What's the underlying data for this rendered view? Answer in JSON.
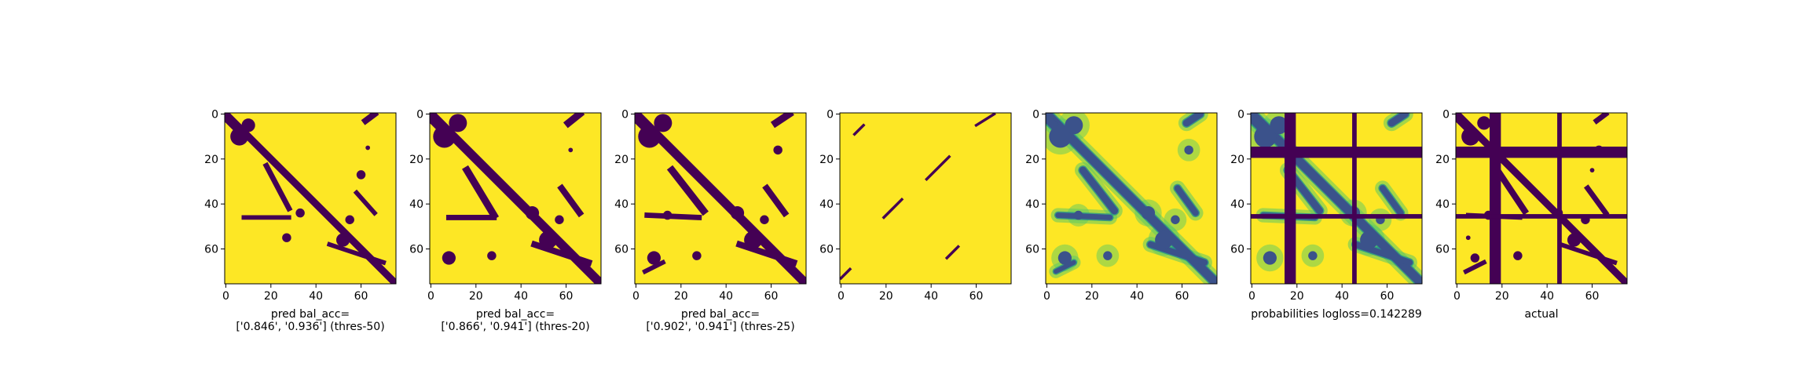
{
  "figure": {
    "colors": {
      "background": "#fde725",
      "dark": "#440154",
      "teal": "#21918c",
      "green": "#5ec962",
      "blue": "#3b528b"
    }
  },
  "chart_data": [
    {
      "type": "heatmap",
      "name": "pred-thres-50",
      "xlabel": [
        "pred bal_acc=",
        "['0.846', '0.936'] (thres-50)"
      ],
      "xticks": [
        0,
        20,
        40,
        60
      ],
      "yticks": [
        0,
        20,
        40,
        60
      ],
      "matrix_size": 76,
      "colormap": "viridis (binary)",
      "blobs": [
        [
          6,
          10,
          4
        ],
        [
          10,
          5,
          3
        ],
        [
          33,
          44,
          2
        ],
        [
          60,
          27,
          2
        ],
        [
          52,
          56,
          3
        ],
        [
          27,
          55,
          2
        ],
        [
          63,
          15,
          1
        ],
        [
          55,
          47,
          2
        ]
      ],
      "segments": [
        [
          0,
          0,
          75,
          75,
          1.6
        ],
        [
          0,
          2,
          8,
          10,
          1.4
        ],
        [
          18,
          23,
          28,
          42,
          1.2
        ],
        [
          8,
          46,
          28,
          46,
          1.0
        ],
        [
          46,
          58,
          70,
          66,
          1.0
        ],
        [
          62,
          3,
          66,
          0,
          1.4
        ],
        [
          58,
          35,
          66,
          44,
          1.0
        ]
      ]
    },
    {
      "type": "heatmap",
      "name": "pred-thres-20",
      "xlabel": [
        "pred bal_acc=",
        "['0.866', '0.941'] (thres-20)"
      ],
      "xticks": [
        0,
        20,
        40,
        60
      ],
      "yticks": [
        0,
        20,
        40,
        60
      ],
      "matrix_size": 76,
      "colormap": "viridis (binary)",
      "blobs": [
        [
          6,
          10,
          5
        ],
        [
          12,
          4,
          4
        ],
        [
          45,
          44,
          3
        ],
        [
          8,
          64,
          3
        ],
        [
          27,
          63,
          2
        ],
        [
          52,
          56,
          4
        ],
        [
          57,
          47,
          2
        ],
        [
          62,
          16,
          1
        ]
      ],
      "segments": [
        [
          0,
          0,
          75,
          75,
          2.0
        ],
        [
          0,
          2,
          8,
          10,
          1.8
        ],
        [
          16,
          25,
          28,
          45,
          1.6
        ],
        [
          8,
          46,
          28,
          46,
          1.2
        ],
        [
          46,
          58,
          70,
          66,
          1.4
        ],
        [
          61,
          4,
          66,
          0,
          1.6
        ],
        [
          58,
          33,
          66,
          44,
          1.4
        ]
      ]
    },
    {
      "type": "heatmap",
      "name": "pred-thres-25",
      "xlabel": [
        "pred bal_acc=",
        "['0.902', '0.941'] (thres-25)"
      ],
      "xticks": [
        0,
        20,
        40,
        60
      ],
      "yticks": [
        0,
        20,
        40,
        60
      ],
      "matrix_size": 76,
      "colormap": "viridis (binary)",
      "blobs": [
        [
          6,
          10,
          5
        ],
        [
          12,
          4,
          4
        ],
        [
          45,
          44,
          3
        ],
        [
          8,
          64,
          3
        ],
        [
          27,
          63,
          2
        ],
        [
          52,
          56,
          4
        ],
        [
          57,
          47,
          2
        ],
        [
          63,
          16,
          2
        ],
        [
          14,
          45,
          2
        ]
      ],
      "segments": [
        [
          0,
          0,
          75,
          75,
          2.0
        ],
        [
          0,
          2,
          8,
          10,
          1.8
        ],
        [
          16,
          25,
          30,
          43,
          1.6
        ],
        [
          5,
          45,
          28,
          46,
          1.2
        ],
        [
          46,
          58,
          70,
          66,
          1.4
        ],
        [
          62,
          4,
          68,
          0,
          1.6
        ],
        [
          58,
          33,
          66,
          44,
          1.4
        ],
        [
          4,
          70,
          12,
          66,
          1.0
        ]
      ]
    },
    {
      "type": "heatmap",
      "name": "pred-sparse",
      "xlabel": [
        "",
        ""
      ],
      "xticks": [
        0,
        20,
        40,
        60
      ],
      "yticks": [
        0,
        20,
        40,
        60
      ],
      "matrix_size": 76,
      "colormap": "viridis (binary)",
      "blobs": [],
      "segments": [
        [
          0,
          73,
          4,
          69,
          0.6
        ],
        [
          6,
          9,
          10,
          5,
          0.6
        ],
        [
          19,
          46,
          27,
          38,
          0.6
        ],
        [
          38,
          29,
          48,
          19,
          0.6
        ],
        [
          47,
          64,
          52,
          59,
          0.6
        ],
        [
          60,
          5,
          68,
          0,
          0.6
        ]
      ]
    },
    {
      "type": "heatmap",
      "name": "probabilities",
      "xlabel": [
        "",
        ""
      ],
      "xticks": [
        0,
        20,
        40,
        60
      ],
      "yticks": [
        0,
        20,
        40,
        60
      ],
      "matrix_size": 76,
      "colormap": "viridis (continuous)",
      "blobs": [
        [
          6,
          10,
          5
        ],
        [
          12,
          5,
          4
        ],
        [
          45,
          44,
          3
        ],
        [
          8,
          64,
          3
        ],
        [
          27,
          63,
          2
        ],
        [
          52,
          56,
          4
        ],
        [
          57,
          47,
          2
        ],
        [
          63,
          16,
          2
        ],
        [
          14,
          45,
          2
        ]
      ],
      "segments": [
        [
          0,
          0,
          75,
          75,
          2.0
        ],
        [
          0,
          2,
          8,
          10,
          1.8
        ],
        [
          16,
          25,
          30,
          43,
          1.6
        ],
        [
          5,
          45,
          28,
          46,
          1.2
        ],
        [
          46,
          58,
          70,
          66,
          1.4
        ],
        [
          62,
          4,
          68,
          0,
          1.6
        ],
        [
          58,
          33,
          66,
          44,
          1.4
        ],
        [
          4,
          70,
          12,
          66,
          1.0
        ]
      ]
    },
    {
      "type": "heatmap",
      "name": "probabilities-logloss",
      "xlabel": [
        "probabilities logloss=0.142289",
        ""
      ],
      "xticks": [
        0,
        20,
        40,
        60
      ],
      "yticks": [
        0,
        20,
        40,
        60
      ],
      "matrix_size": 76,
      "colormap": "viridis (continuous)",
      "blobs": [
        [
          6,
          10,
          5
        ],
        [
          12,
          5,
          4
        ],
        [
          45,
          44,
          3
        ],
        [
          8,
          64,
          3
        ],
        [
          27,
          63,
          2
        ],
        [
          52,
          56,
          4
        ],
        [
          57,
          47,
          2
        ]
      ],
      "segments": [
        [
          0,
          0,
          75,
          75,
          2.0
        ],
        [
          0,
          2,
          8,
          10,
          1.8
        ],
        [
          16,
          25,
          30,
          43,
          1.6
        ],
        [
          5,
          45,
          28,
          46,
          1.2
        ],
        [
          46,
          58,
          70,
          66,
          1.4
        ],
        [
          62,
          4,
          68,
          0,
          1.6
        ],
        [
          58,
          33,
          66,
          44,
          1.4
        ]
      ],
      "bands": {
        "cols": [
          [
            15,
            19
          ],
          [
            45,
            46
          ]
        ],
        "rows": [
          [
            15,
            19
          ],
          [
            45,
            46
          ]
        ]
      }
    },
    {
      "type": "heatmap",
      "name": "actual",
      "xlabel": [
        "actual",
        ""
      ],
      "xticks": [
        0,
        20,
        40,
        60
      ],
      "yticks": [
        0,
        20,
        40,
        60
      ],
      "matrix_size": 76,
      "colormap": "viridis (binary)",
      "blobs": [
        [
          6,
          10,
          4
        ],
        [
          12,
          4,
          3
        ],
        [
          45,
          44,
          2
        ],
        [
          8,
          64,
          2
        ],
        [
          27,
          63,
          2
        ],
        [
          52,
          56,
          3
        ],
        [
          57,
          47,
          2
        ],
        [
          63,
          16,
          2
        ],
        [
          14,
          45,
          2
        ],
        [
          60,
          25,
          1
        ],
        [
          5,
          55,
          1
        ]
      ],
      "segments": [
        [
          0,
          0,
          75,
          75,
          1.6
        ],
        [
          0,
          2,
          8,
          10,
          1.4
        ],
        [
          18,
          25,
          30,
          43,
          1.4
        ],
        [
          5,
          45,
          28,
          46,
          1.0
        ],
        [
          46,
          58,
          70,
          66,
          1.0
        ],
        [
          62,
          3,
          66,
          0,
          1.2
        ],
        [
          58,
          33,
          66,
          44,
          1.2
        ],
        [
          4,
          70,
          12,
          66,
          1.0
        ]
      ],
      "bands": {
        "cols": [
          [
            15,
            19
          ],
          [
            45,
            46
          ]
        ],
        "rows": [
          [
            15,
            19
          ],
          [
            45,
            46
          ]
        ]
      }
    }
  ]
}
